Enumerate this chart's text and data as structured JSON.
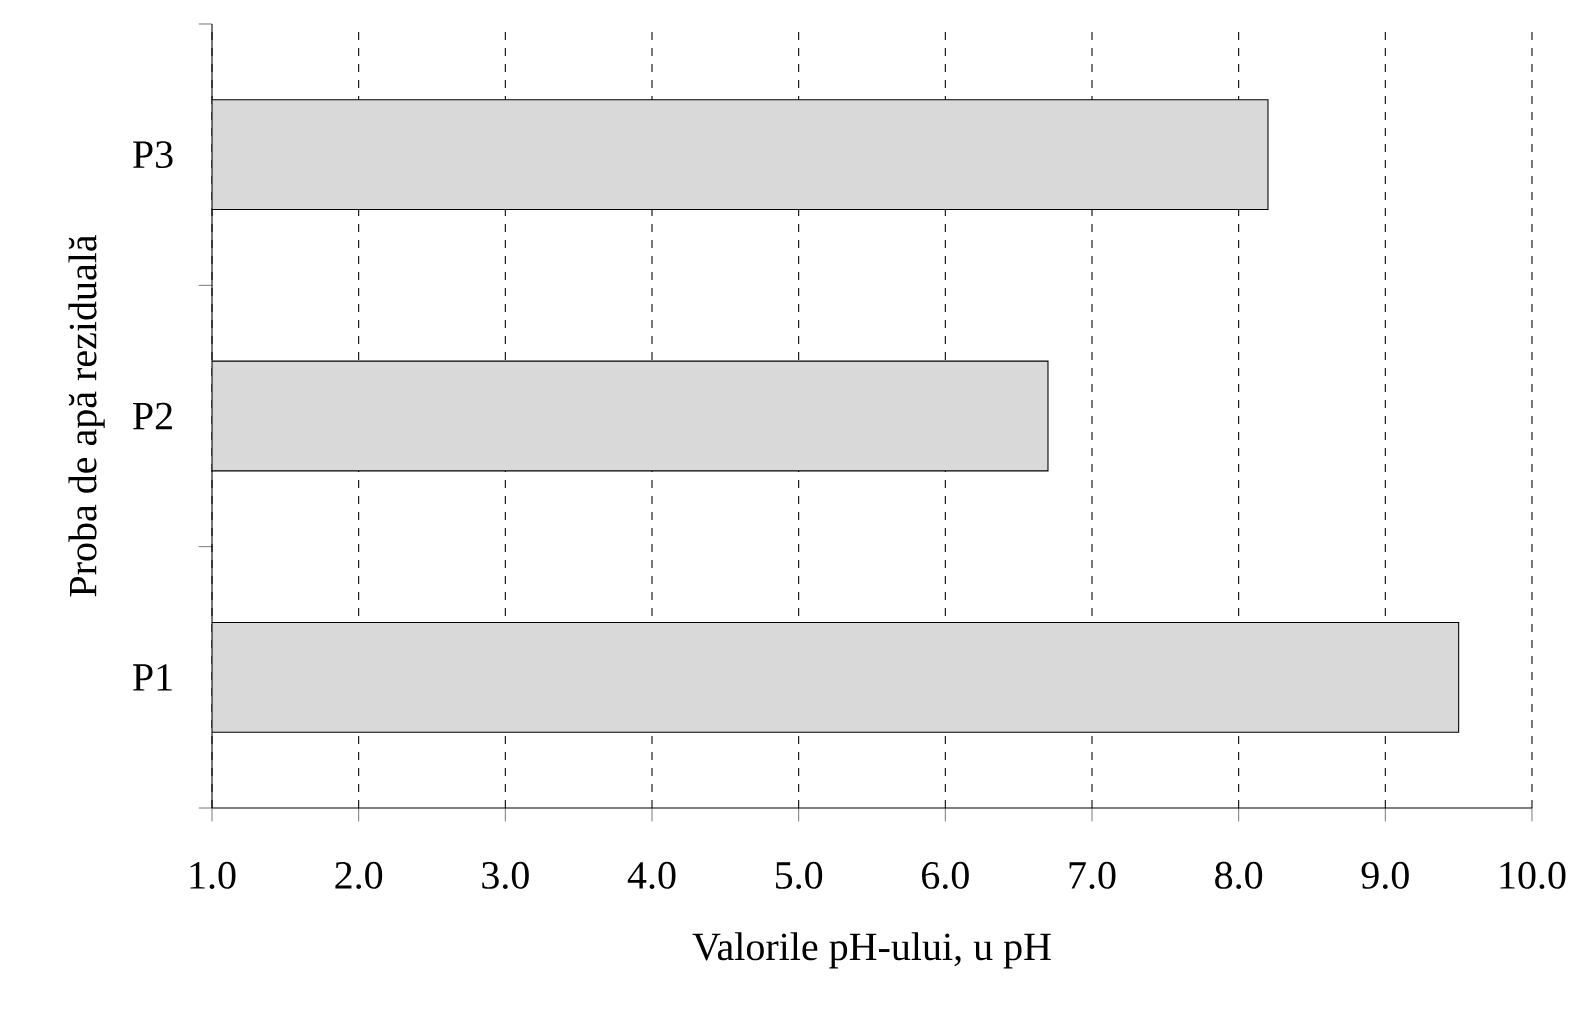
{
  "chart_data": {
    "type": "bar",
    "orientation": "horizontal",
    "categories": [
      "P3",
      "P2",
      "P1"
    ],
    "values": [
      8.2,
      6.7,
      9.5
    ],
    "color": "#d9d9d9",
    "xlabel": "Valorile pH-ului, u pH",
    "ylabel": "Proba de apă reziduală",
    "xlim": [
      1.0,
      10.0
    ],
    "xticks": [
      {
        "value": 1,
        "label": "1.0"
      },
      {
        "value": 2,
        "label": "2.0"
      },
      {
        "value": 3,
        "label": "3.0"
      },
      {
        "value": 4,
        "label": "4.0"
      },
      {
        "value": 5,
        "label": "5.0"
      },
      {
        "value": 6,
        "label": "6.0"
      },
      {
        "value": 7,
        "label": "7.0"
      },
      {
        "value": 8,
        "label": "8.0"
      },
      {
        "value": 9,
        "label": "9.0"
      },
      {
        "value": 10,
        "label": "10.0"
      }
    ],
    "grid": "x"
  }
}
